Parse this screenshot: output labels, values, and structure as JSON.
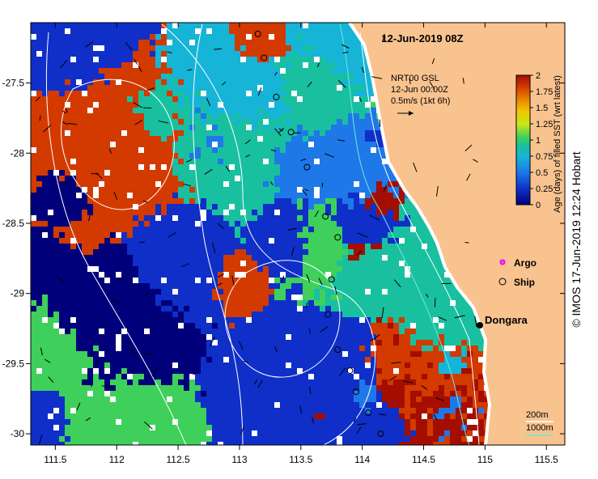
{
  "title": "12-Jun-2019 08Z",
  "current_legend": {
    "line1": "NRT00 GSL",
    "line2": "12-Jun 00:00Z",
    "line3": "0.5m/s (1kt 6h)"
  },
  "colorbar": {
    "label": "Age (days) of filled SST (wrt latest)",
    "ticks": [
      "2",
      "1.75",
      "1.5",
      "1.25",
      "1",
      "0.75",
      "0.5",
      "0.25",
      "0"
    ],
    "colors": [
      "#00007a",
      "#0f2fc8",
      "#1e78e8",
      "#16b4d6",
      "#18c0a0",
      "#3ed05a",
      "#c8e61c",
      "#f0c800",
      "#e88000",
      "#d23a00",
      "#a40e00"
    ]
  },
  "land_color": "#f9c38f",
  "legend": {
    "argo": "Argo",
    "ship": "Ship"
  },
  "place": {
    "name": "Dongara"
  },
  "bathymetry_legend": {
    "shallow": "200m",
    "deep": "1000m"
  },
  "credit": "© IMOS 17-Jun-2019 12:24 Hobart",
  "axes": {
    "x_ticks": [
      "111.5",
      "112",
      "112.5",
      "113",
      "113.5",
      "114",
      "114.5",
      "115",
      "115.5"
    ],
    "y_ticks": [
      "-27.5",
      "-28",
      "-28.5",
      "-29",
      "-29.5",
      "-30"
    ]
  }
}
